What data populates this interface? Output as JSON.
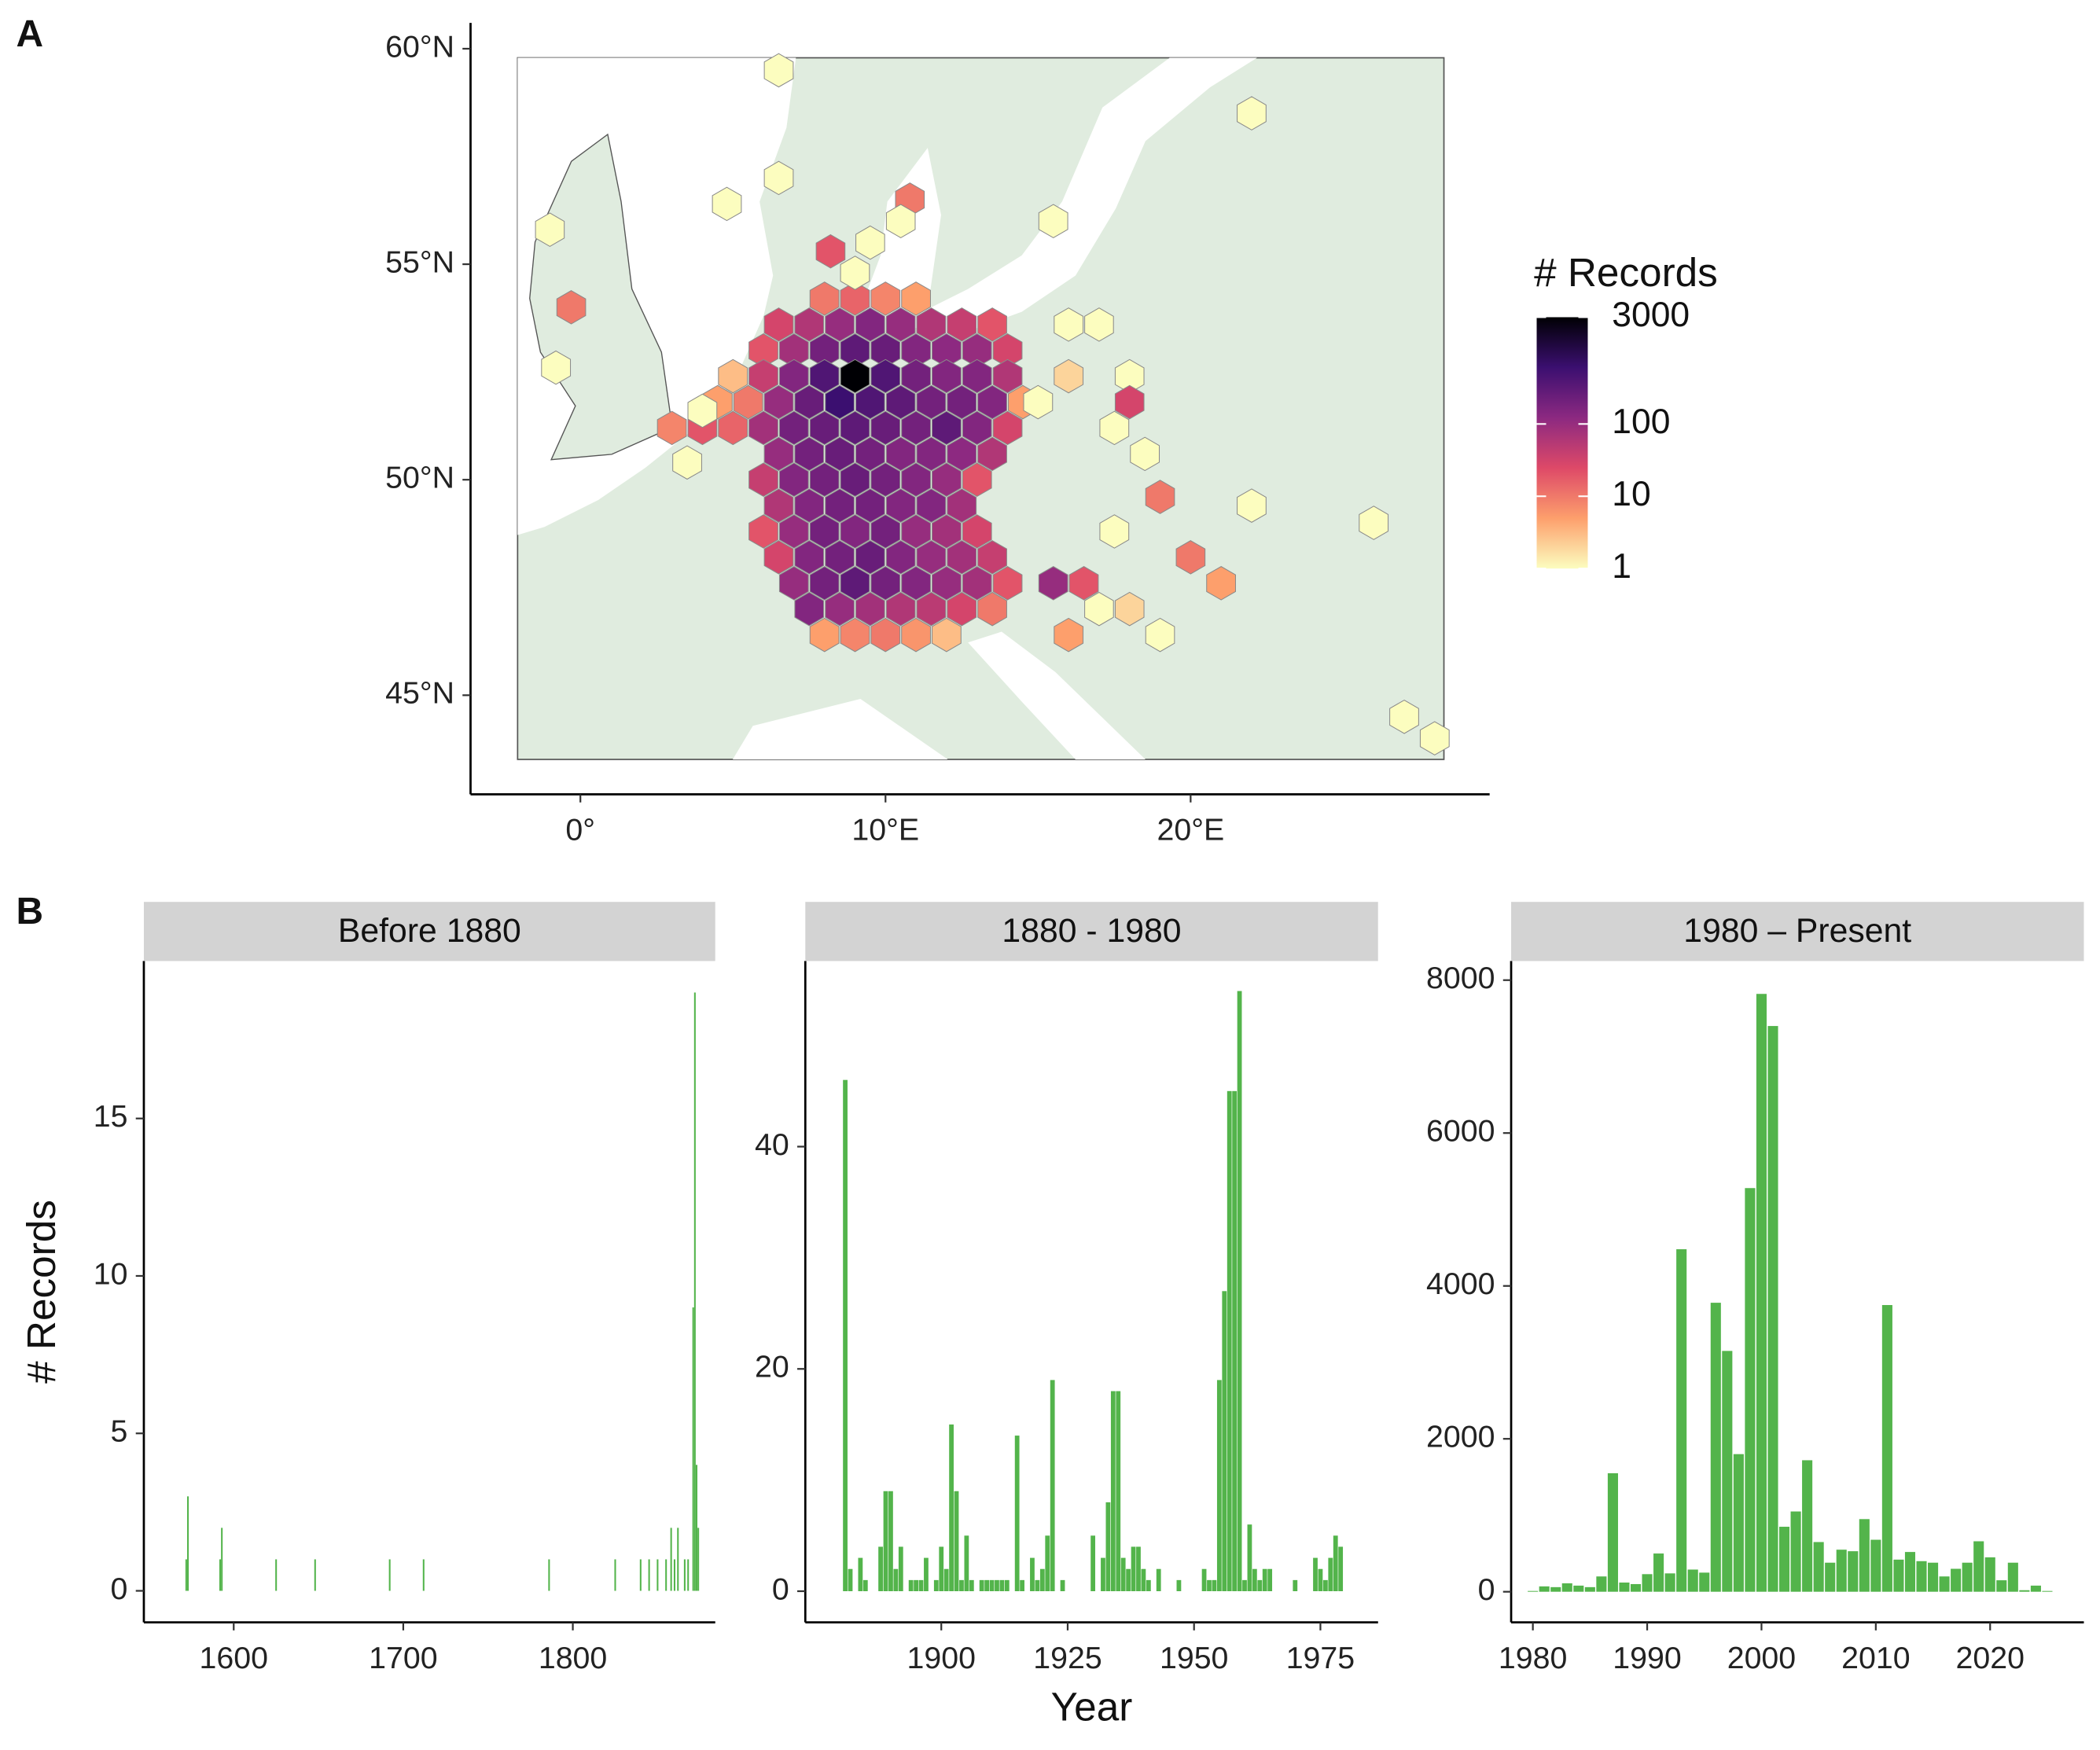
{
  "panel_labels": [
    "A",
    "B"
  ],
  "chart_data": [
    {
      "type": "hexbin",
      "legend_title": "# Records",
      "xlim": [
        -3.6,
        29.8
      ],
      "ylim": [
        42.7,
        60.6
      ],
      "xticks": [
        {
          "value": 0,
          "label": "0°"
        },
        {
          "value": 10,
          "label": "10°E"
        },
        {
          "value": 20,
          "label": "20°E"
        }
      ],
      "yticks": [
        {
          "value": 45,
          "label": "45°N"
        },
        {
          "value": 50,
          "label": "50°N"
        },
        {
          "value": 55,
          "label": "55°N"
        },
        {
          "value": 60,
          "label": "60°N"
        }
      ],
      "colorbar": {
        "log": true,
        "lim": [
          1,
          3000
        ],
        "ticks": [
          1,
          10,
          100,
          3000
        ],
        "colors": [
          "#fcfdbf",
          "#fd9f6c",
          "#de4968",
          "#8c2981",
          "#3b0f70",
          "#000004"
        ]
      },
      "lon": [
        8,
        9,
        10,
        11,
        6.5,
        7.5,
        8.5,
        9.5,
        10.5,
        11.5,
        12.5,
        13.5,
        6,
        7,
        8,
        9,
        10,
        11,
        12,
        13,
        14,
        5,
        6,
        7,
        8,
        9,
        10,
        11,
        12,
        13,
        14,
        4.5,
        5.5,
        6.5,
        7.5,
        8.5,
        9.5,
        10.5,
        11.5,
        12.5,
        13.5,
        14.5,
        3,
        4,
        5,
        6,
        7,
        8,
        9,
        10,
        11,
        12,
        13,
        14,
        6.5,
        7.5,
        8.5,
        9.5,
        10.5,
        11.5,
        12.5,
        13.5,
        6,
        7,
        8,
        9,
        10,
        11,
        12,
        13,
        6.5,
        7.5,
        8.5,
        9.5,
        10.5,
        11.5,
        12.5,
        6,
        7,
        8,
        9,
        10,
        11,
        12,
        13,
        6.5,
        7.5,
        8.5,
        9.5,
        10.5,
        11.5,
        12.5,
        13.5,
        7,
        8,
        9,
        10,
        11,
        12,
        13,
        14,
        7.5,
        8.5,
        9.5,
        10.5,
        11.5,
        12.5,
        13.5,
        8,
        9,
        10,
        11,
        12,
        15.5,
        16.5,
        17,
        18,
        19,
        16,
        20,
        21,
        22,
        26,
        27,
        28,
        15,
        16,
        16,
        17,
        18,
        17.5,
        18.5,
        18,
        19,
        17.5,
        -0.3,
        -1,
        -0.8,
        4.8,
        6.5,
        6.5,
        10.8,
        10.5,
        9.5,
        8.2,
        9,
        22,
        15.5,
        3.5,
        4
      ],
      "lat": [
        54.2,
        54.2,
        54.2,
        54.2,
        53.6,
        53.6,
        53.6,
        53.6,
        53.6,
        53.6,
        53.6,
        53.6,
        53,
        53,
        53,
        53,
        53,
        53,
        53,
        53,
        53,
        52.4,
        52.4,
        52.4,
        52.4,
        52.4,
        52.4,
        52.4,
        52.4,
        52.4,
        52.4,
        51.8,
        51.8,
        51.8,
        51.8,
        51.8,
        51.8,
        51.8,
        51.8,
        51.8,
        51.8,
        51.8,
        51.2,
        51.2,
        51.2,
        51.2,
        51.2,
        51.2,
        51.2,
        51.2,
        51.2,
        51.2,
        51.2,
        51.2,
        50.6,
        50.6,
        50.6,
        50.6,
        50.6,
        50.6,
        50.6,
        50.6,
        50,
        50,
        50,
        50,
        50,
        50,
        50,
        50,
        49.4,
        49.4,
        49.4,
        49.4,
        49.4,
        49.4,
        49.4,
        48.8,
        48.8,
        48.8,
        48.8,
        48.8,
        48.8,
        48.8,
        48.8,
        48.2,
        48.2,
        48.2,
        48.2,
        48.2,
        48.2,
        48.2,
        48.2,
        47.6,
        47.6,
        47.6,
        47.6,
        47.6,
        47.6,
        47.6,
        47.6,
        47,
        47,
        47,
        47,
        47,
        47,
        47,
        46.4,
        46.4,
        46.4,
        46.4,
        46.4,
        47.6,
        47.6,
        47,
        47,
        46.4,
        46.4,
        48.2,
        47.6,
        49.4,
        49,
        44.5,
        44,
        51.8,
        52.4,
        53.6,
        53.6,
        52.4,
        51.2,
        50.6,
        51.8,
        49.6,
        48.8,
        54,
        55.8,
        52.6,
        56.4,
        57,
        59.5,
        56.5,
        56,
        55.5,
        55.3,
        54.8,
        58.5,
        56,
        50.4,
        51.6
      ],
      "values": [
        10,
        15,
        8,
        5,
        30,
        60,
        100,
        150,
        100,
        60,
        40,
        20,
        20,
        80,
        200,
        300,
        250,
        150,
        120,
        100,
        30,
        3,
        40,
        150,
        400,
        3000,
        400,
        200,
        150,
        150,
        60,
        5,
        10,
        100,
        250,
        600,
        400,
        300,
        200,
        200,
        150,
        5,
        8,
        20,
        15,
        80,
        200,
        250,
        300,
        250,
        200,
        300,
        150,
        30,
        100,
        200,
        250,
        200,
        150,
        150,
        120,
        60,
        40,
        150,
        200,
        250,
        200,
        150,
        100,
        20,
        60,
        150,
        200,
        200,
        150,
        150,
        80,
        20,
        100,
        200,
        150,
        200,
        100,
        80,
        30,
        30,
        150,
        200,
        250,
        150,
        100,
        80,
        40,
        100,
        200,
        300,
        200,
        150,
        100,
        80,
        20,
        150,
        100,
        80,
        60,
        50,
        30,
        10,
        5,
        8,
        10,
        6,
        3,
        100,
        20,
        1,
        2,
        1,
        5,
        10,
        5,
        1,
        1,
        1,
        1,
        1,
        2,
        1,
        1,
        1,
        1,
        1,
        30,
        10,
        1,
        10,
        1,
        1,
        1,
        1,
        1,
        10,
        1,
        1,
        20,
        1,
        1,
        1,
        1,
        1
      ]
    },
    {
      "type": "bar",
      "title": "Before 1880",
      "y_label": "# Records",
      "color": "#53b44b",
      "xlim": [
        1547,
        1884
      ],
      "ylim": [
        -1,
        20
      ],
      "xticks": [
        1600,
        1700,
        1800
      ],
      "yticks": [
        0,
        5,
        10,
        15
      ],
      "x": [
        1572,
        1573,
        1592,
        1593,
        1625,
        1648,
        1692,
        1712,
        1786,
        1825,
        1840,
        1845,
        1850,
        1855,
        1858,
        1860,
        1862,
        1866,
        1868,
        1871,
        1872,
        1873,
        1874
      ],
      "values": [
        1,
        3,
        1,
        2,
        1,
        1,
        1,
        1,
        1,
        1,
        1,
        1,
        1,
        1,
        2,
        1,
        2,
        1,
        1,
        9,
        19,
        4,
        2
      ]
    },
    {
      "type": "bar",
      "title": "1880 - 1980",
      "x_label": "Year",
      "color": "#53b44b",
      "xlim": [
        1873.1,
        1986.4
      ],
      "ylim": [
        -2.8,
        56.7
      ],
      "xticks": [
        1900,
        1925,
        1950,
        1975
      ],
      "yticks": [
        0,
        20,
        40
      ],
      "x": [
        1881,
        1882,
        1884,
        1885,
        1888,
        1889,
        1890,
        1891,
        1892,
        1894,
        1895,
        1896,
        1897,
        1899,
        1900,
        1901,
        1902,
        1903,
        1904,
        1905,
        1906,
        1908,
        1909,
        1910,
        1911,
        1912,
        1913,
        1915,
        1916,
        1918,
        1919,
        1920,
        1921,
        1922,
        1924,
        1930,
        1932,
        1933,
        1934,
        1935,
        1936,
        1937,
        1938,
        1939,
        1940,
        1941,
        1943,
        1947,
        1952,
        1953,
        1954,
        1955,
        1956,
        1957,
        1958,
        1959,
        1960,
        1961,
        1962,
        1963,
        1964,
        1965,
        1970,
        1974,
        1975,
        1976,
        1977,
        1978,
        1979
      ],
      "values": [
        46,
        2,
        3,
        1,
        4,
        9,
        9,
        2,
        4,
        1,
        1,
        1,
        3,
        1,
        4,
        2,
        15,
        9,
        1,
        5,
        1,
        1,
        1,
        1,
        1,
        1,
        1,
        14,
        1,
        3,
        1,
        2,
        5,
        19,
        1,
        5,
        3,
        8,
        18,
        18,
        3,
        2,
        4,
        4,
        2,
        1,
        2,
        1,
        2,
        1,
        1,
        19,
        27,
        45,
        45,
        54,
        1,
        6,
        2,
        1,
        2,
        2,
        1,
        3,
        2,
        1,
        3,
        5,
        4
      ]
    },
    {
      "type": "bar",
      "title": "1980 – Present",
      "color": "#53b44b",
      "xlim": [
        1978.1,
        2028.2
      ],
      "ylim": [
        -400,
        8250
      ],
      "xticks": [
        1980,
        1990,
        2000,
        2010,
        2020
      ],
      "yticks": [
        0,
        2000,
        4000,
        6000,
        8000
      ],
      "x": [
        1980,
        1981,
        1982,
        1983,
        1984,
        1985,
        1986,
        1987,
        1988,
        1989,
        1990,
        1991,
        1992,
        1993,
        1994,
        1995,
        1996,
        1997,
        1998,
        1999,
        2000,
        2001,
        2002,
        2003,
        2004,
        2005,
        2006,
        2007,
        2008,
        2009,
        2010,
        2011,
        2012,
        2013,
        2014,
        2015,
        2016,
        2017,
        2018,
        2019,
        2020,
        2021,
        2022,
        2023,
        2024,
        2025
      ],
      "values": [
        10,
        70,
        60,
        110,
        80,
        60,
        200,
        1550,
        120,
        100,
        230,
        500,
        240,
        4480,
        290,
        250,
        3780,
        3150,
        1800,
        5280,
        7820,
        7400,
        850,
        1050,
        1720,
        650,
        380,
        550,
        530,
        950,
        680,
        3750,
        420,
        520,
        400,
        380,
        200,
        300,
        380,
        660,
        450,
        150,
        380,
        20,
        80,
        10
      ]
    }
  ]
}
